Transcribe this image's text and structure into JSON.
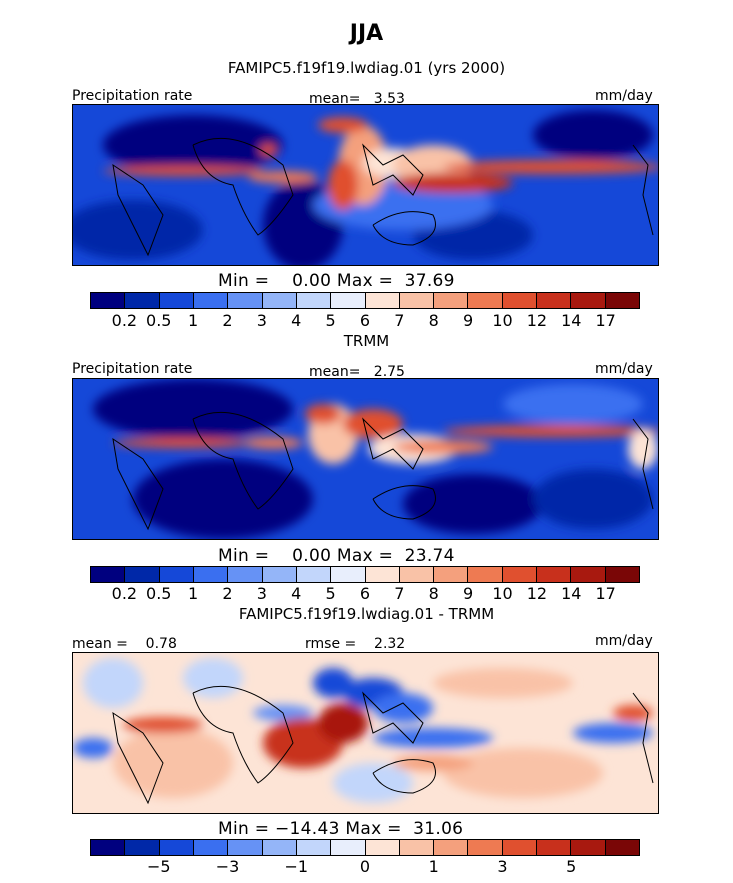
{
  "title": "JJA",
  "panels": [
    {
      "subtitle": "FAMIPC5.f19f19.lwdiag.01 (yrs 2000)",
      "left_label": "Precipitation rate",
      "center_label": "mean=   3.53",
      "right_label": "mm/day",
      "minmax": "Min =    0.00 Max =  37.69",
      "palette": [
        "#00007f",
        "#0028a8",
        "#1548d8",
        "#3a6ff0",
        "#6692f5",
        "#94b5f8",
        "#c2d6fb",
        "#e8eefc",
        "#fde4d6",
        "#f9c2a7",
        "#f4a07d",
        "#ee7a52",
        "#e0502f",
        "#c8301c",
        "#a8190f",
        "#7a0606"
      ],
      "tick_labels": [
        "0.2",
        "0.5",
        "1",
        "2",
        "3",
        "4",
        "5",
        "6",
        "7",
        "8",
        "9",
        "10",
        "12",
        "14",
        "17"
      ]
    },
    {
      "subtitle": "TRMM",
      "left_label": "Precipitation rate",
      "center_label": "mean=   2.75",
      "right_label": "mm/day",
      "minmax": "Min =    0.00 Max =  23.74",
      "palette": [
        "#00007f",
        "#0028a8",
        "#1548d8",
        "#3a6ff0",
        "#6692f5",
        "#94b5f8",
        "#c2d6fb",
        "#e8eefc",
        "#fde4d6",
        "#f9c2a7",
        "#f4a07d",
        "#ee7a52",
        "#e0502f",
        "#c8301c",
        "#a8190f",
        "#7a0606"
      ],
      "tick_labels": [
        "0.2",
        "0.5",
        "1",
        "2",
        "3",
        "4",
        "5",
        "6",
        "7",
        "8",
        "9",
        "10",
        "12",
        "14",
        "17"
      ]
    },
    {
      "subtitle": "FAMIPC5.f19f19.lwdiag.01 - TRMM",
      "left_label": "mean =    0.78",
      "center_label": "rmse =    2.32",
      "right_label": "mm/day",
      "minmax": "Min = −14.43 Max =  31.06",
      "palette": [
        "#00007f",
        "#0028a8",
        "#1548d8",
        "#3a6ff0",
        "#6692f5",
        "#94b5f8",
        "#c2d6fb",
        "#e8eefc",
        "#fde4d6",
        "#f9c2a7",
        "#f4a07d",
        "#ee7a52",
        "#e0502f",
        "#c8301c",
        "#a8190f",
        "#7a0606"
      ],
      "tick_labels": [
        "−5",
        "−3",
        "−1",
        "0",
        "1",
        "3",
        "5"
      ]
    }
  ],
  "chart_data": [
    {
      "type": "heatmap",
      "title": "FAMIPC5.f19f19.lwdiag.01 (yrs 2000)",
      "variable": "Precipitation rate",
      "units": "mm/day",
      "mean": 3.53,
      "min": 0.0,
      "max": 37.69,
      "contour_levels": [
        0.2,
        0.5,
        1,
        2,
        3,
        4,
        5,
        6,
        7,
        8,
        9,
        10,
        12,
        14,
        17
      ]
    },
    {
      "type": "heatmap",
      "title": "TRMM",
      "variable": "Precipitation rate",
      "units": "mm/day",
      "mean": 2.75,
      "min": 0.0,
      "max": 23.74,
      "contour_levels": [
        0.2,
        0.5,
        1,
        2,
        3,
        4,
        5,
        6,
        7,
        8,
        9,
        10,
        12,
        14,
        17
      ]
    },
    {
      "type": "heatmap",
      "title": "FAMIPC5.f19f19.lwdiag.01 - TRMM",
      "units": "mm/day",
      "mean": 0.78,
      "rmse": 2.32,
      "min": -14.43,
      "max": 31.06,
      "labeled_levels": [
        -5,
        -3,
        -1,
        0,
        1,
        3,
        5
      ]
    }
  ]
}
